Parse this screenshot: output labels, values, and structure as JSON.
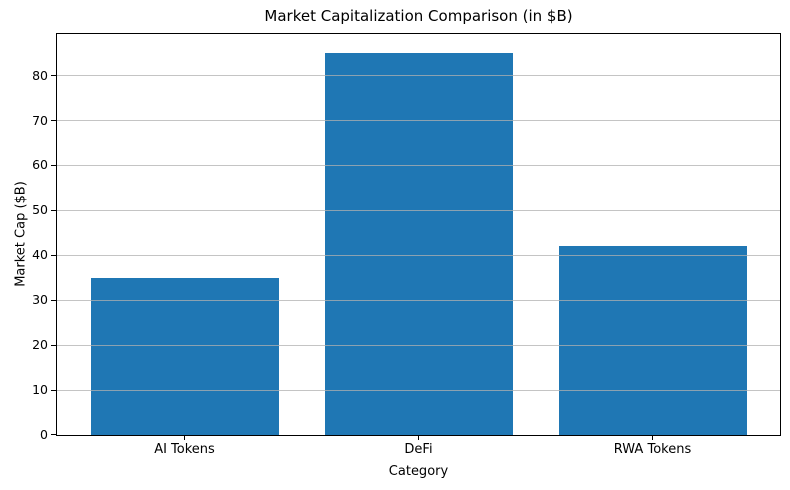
{
  "figure": {
    "background_color": "#ffffff",
    "text_color": "#000000"
  },
  "chart_data": {
    "type": "bar",
    "title": "Market Capitalization Comparison (in $B)",
    "xlabel": "Category",
    "ylabel": "Market Cap ($B)",
    "categories": [
      "AI Tokens",
      "DeFi",
      "RWA Tokens"
    ],
    "values": [
      35,
      85,
      42
    ],
    "yticks": [
      0,
      10,
      20,
      30,
      40,
      50,
      60,
      70,
      80
    ],
    "ylim": [
      0,
      89.25
    ],
    "bar_color": "#1f77b4",
    "grid": "horizontal",
    "grid_color": "#b0b0b0",
    "legend_position": "none"
  }
}
